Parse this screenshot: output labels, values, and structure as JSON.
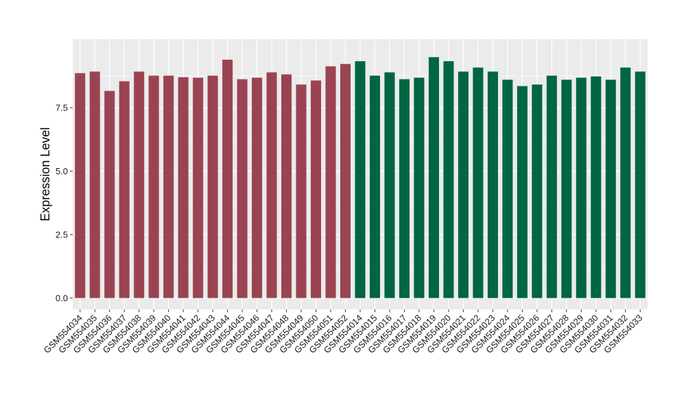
{
  "chart_data": {
    "type": "bar",
    "title": "",
    "xlabel": "",
    "ylabel": "Expression Level",
    "ylim": [
      -0.45,
      10.2
    ],
    "yticks": [
      0.0,
      2.5,
      5.0,
      7.5
    ],
    "ytick_labels": [
      "0.0",
      "2.5",
      "5.0",
      "7.5"
    ],
    "grid": true,
    "legend": "none",
    "colors": {
      "panel": "#ebebeb",
      "grid": "#ffffff",
      "group1": "#9b4451",
      "group2": "#006641"
    },
    "categories": [
      "GSM554034",
      "GSM554035",
      "GSM554036",
      "GSM554037",
      "GSM554038",
      "GSM554039",
      "GSM554040",
      "GSM554041",
      "GSM554042",
      "GSM554043",
      "GSM554044",
      "GSM554045",
      "GSM554046",
      "GSM554047",
      "GSM554048",
      "GSM554049",
      "GSM554050",
      "GSM554051",
      "GSM554052",
      "GSM554014",
      "GSM554015",
      "GSM554016",
      "GSM554017",
      "GSM554018",
      "GSM554019",
      "GSM554020",
      "GSM554021",
      "GSM554022",
      "GSM554023",
      "GSM554024",
      "GSM554025",
      "GSM554026",
      "GSM554027",
      "GSM554028",
      "GSM554029",
      "GSM554030",
      "GSM554031",
      "GSM554032",
      "GSM554033"
    ],
    "values": [
      8.86,
      8.92,
      8.16,
      8.54,
      8.92,
      8.76,
      8.76,
      8.7,
      8.68,
      8.76,
      9.39,
      8.62,
      8.68,
      8.89,
      8.81,
      8.41,
      8.57,
      9.13,
      9.22,
      9.33,
      8.76,
      8.89,
      8.62,
      8.68,
      9.49,
      9.33,
      8.92,
      9.08,
      8.92,
      8.6,
      8.35,
      8.41,
      8.76,
      8.6,
      8.68,
      8.73,
      8.6,
      9.08,
      8.92
    ],
    "groups": [
      1,
      1,
      1,
      1,
      1,
      1,
      1,
      1,
      1,
      1,
      1,
      1,
      1,
      1,
      1,
      1,
      1,
      1,
      1,
      2,
      2,
      2,
      2,
      2,
      2,
      2,
      2,
      2,
      2,
      2,
      2,
      2,
      2,
      2,
      2,
      2,
      2,
      2,
      2
    ]
  }
}
